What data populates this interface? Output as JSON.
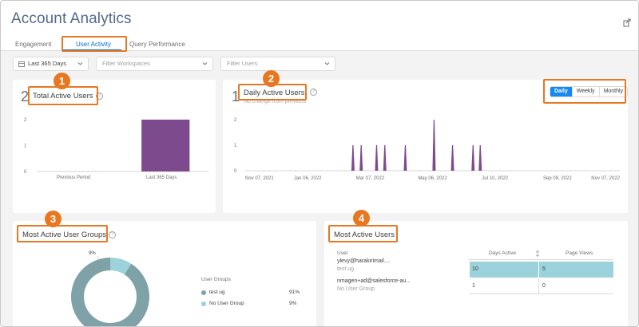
{
  "app": {
    "title": "Account Analytics"
  },
  "tabs": [
    {
      "label": "Engagement",
      "active": false
    },
    {
      "label": "User Activity",
      "active": true
    },
    {
      "label": "Query Performance",
      "active": false
    }
  ],
  "filters": {
    "date": "Last 365 Days",
    "workspaces_placeholder": "Filter Workspaces",
    "users_placeholder": "Filter Users"
  },
  "callouts": [
    "1",
    "2",
    "3",
    "4"
  ],
  "total_active_users": {
    "title": "Total Active Users",
    "value": "2",
    "chart_data": {
      "type": "bar",
      "categories": [
        "Previous Period",
        "Last 365 Days"
      ],
      "values": [
        0,
        2
      ],
      "yticks": [
        "2",
        "1",
        "0"
      ],
      "ylim": [
        0,
        2
      ],
      "colors": [
        "#e8e8e8",
        "#7e4a8e"
      ]
    }
  },
  "daily_active_users": {
    "title": "Daily Active Users",
    "value": "1",
    "subtitle": "No change from previous",
    "toggle": [
      "Daily",
      "Weekly",
      "Monthly"
    ],
    "toggle_selected": "Daily",
    "chart_data": {
      "type": "area",
      "xticks": [
        "Nov 07, 2021",
        "Jan 06, 2022",
        "Mar 07, 2022",
        "May 06, 2022",
        "Jul 10, 2022",
        "Sep 08, 2022",
        "Nov 07, 2022"
      ],
      "yticks": [
        "2",
        "1",
        "0"
      ],
      "ylim": [
        0,
        2
      ],
      "spikes": [
        {
          "date": "2022-02-20",
          "value": 1
        },
        {
          "date": "2022-02-28",
          "value": 1
        },
        {
          "date": "2022-03-15",
          "value": 1
        },
        {
          "date": "2022-03-23",
          "value": 1
        },
        {
          "date": "2022-04-12",
          "value": 1
        },
        {
          "date": "2022-05-10",
          "value": 2
        },
        {
          "date": "2022-05-28",
          "value": 1
        },
        {
          "date": "2022-06-17",
          "value": 1
        },
        {
          "date": "2022-06-24",
          "value": 1
        }
      ],
      "color": "#7e4a8e"
    }
  },
  "user_groups": {
    "title": "Most Active User Groups",
    "legend_title": "User Groups",
    "chart_data": {
      "type": "pie",
      "labels": [
        "test ug",
        "No User Group"
      ],
      "values": [
        91,
        9
      ],
      "percent_labels": [
        "91%",
        "9%"
      ],
      "slice_label": "9%",
      "colors": [
        "#7fa1a8",
        "#9cd2db"
      ]
    }
  },
  "active_users": {
    "title": "Most Active Users",
    "columns": [
      "User",
      "Days Active",
      "Page Views"
    ],
    "rows": [
      {
        "user": "ylevy@harakirimail....",
        "group": "test ug",
        "days_active": "10",
        "page_views": "5"
      },
      {
        "user": "nmagen+ad@salesforce-au...",
        "group": "No User Group",
        "days_active": "1",
        "page_views": "0"
      }
    ],
    "bar_color": "#9cd2db"
  }
}
